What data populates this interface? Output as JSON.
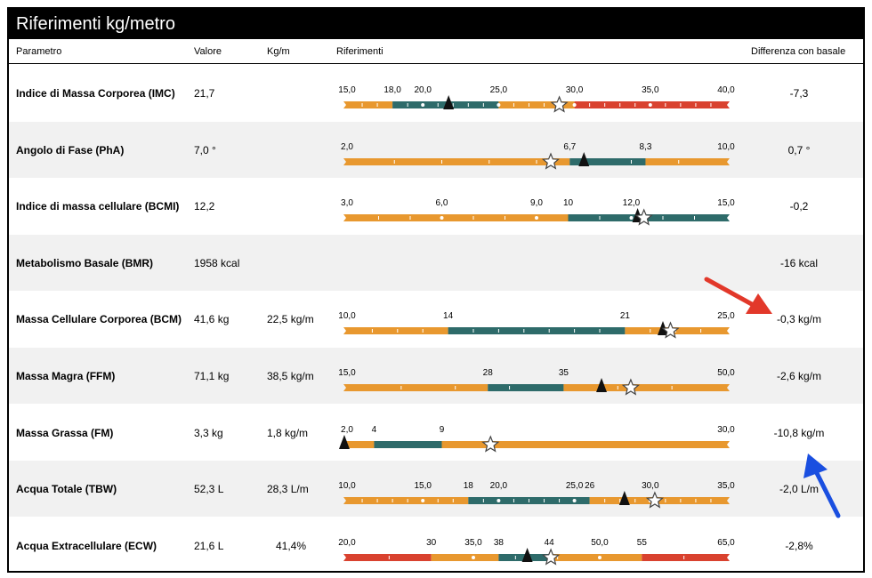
{
  "title": "Riferimenti kg/metro",
  "columns": {
    "param": "Parametro",
    "value": "Valore",
    "kgm": "Kg/m",
    "ref": "Riferimenti",
    "diff": "Differenza con basale"
  },
  "colors": {
    "orange": "#e8982f",
    "teal": "#2e6b6a",
    "red": "#d9422f",
    "arrow_red": "#e2382a",
    "arrow_blue": "#1a4fe0"
  },
  "rows": [
    {
      "name": "Indice di Massa Corporea (IMC)",
      "value": "21,7",
      "kgm": "",
      "diff": "-7,3",
      "scale": {
        "min": 15,
        "max": 40,
        "segments": [
          {
            "from": 15,
            "to": 18,
            "color": "orange"
          },
          {
            "from": 18,
            "to": 25,
            "color": "teal"
          },
          {
            "from": 25,
            "to": 30,
            "color": "orange"
          },
          {
            "from": 30,
            "to": 40,
            "color": "red"
          }
        ],
        "labels": [
          {
            "v": 15,
            "t": "15,0"
          },
          {
            "v": 18,
            "t": "18,0"
          },
          {
            "v": 20,
            "t": "20,0"
          },
          {
            "v": 25,
            "t": "25,0"
          },
          {
            "v": 30,
            "t": "30,0"
          },
          {
            "v": 35,
            "t": "35,0"
          },
          {
            "v": 40,
            "t": "40,0"
          }
        ],
        "ticks": [
          16,
          17,
          19,
          21,
          22,
          23,
          24,
          26,
          27,
          28,
          29,
          31,
          32,
          33,
          34,
          36,
          37,
          38,
          39
        ],
        "dots": [
          20,
          25,
          30,
          35
        ],
        "triangle": 21.7,
        "star": 29
      }
    },
    {
      "name": "Angolo di Fase (PhA)",
      "value": "7,0 °",
      "kgm": "",
      "diff": "0,7 °",
      "scale": {
        "min": 2,
        "max": 10,
        "segments": [
          {
            "from": 2,
            "to": 6.7,
            "color": "orange"
          },
          {
            "from": 6.7,
            "to": 8.3,
            "color": "teal"
          },
          {
            "from": 8.3,
            "to": 10,
            "color": "orange"
          }
        ],
        "labels": [
          {
            "v": 2,
            "t": "2,0"
          },
          {
            "v": 6.7,
            "t": "6,7"
          },
          {
            "v": 8.3,
            "t": "8,3"
          },
          {
            "v": 10,
            "t": "10,0"
          }
        ],
        "ticks": [
          3,
          4,
          5,
          6,
          7,
          8,
          9
        ],
        "dots": [],
        "triangle": 7.0,
        "star": 6.3
      }
    },
    {
      "name": "Indice di massa cellulare (BCMI)",
      "value": "12,2",
      "kgm": "",
      "diff": "-0,2",
      "scale": {
        "min": 3,
        "max": 15,
        "segments": [
          {
            "from": 3,
            "to": 10,
            "color": "orange"
          },
          {
            "from": 10,
            "to": 15,
            "color": "teal"
          }
        ],
        "labels": [
          {
            "v": 3,
            "t": "3,0"
          },
          {
            "v": 6,
            "t": "6,0"
          },
          {
            "v": 9,
            "t": "9,0"
          },
          {
            "v": 10,
            "t": "10"
          },
          {
            "v": 12,
            "t": "12,0"
          },
          {
            "v": 15,
            "t": "15,0"
          }
        ],
        "ticks": [
          4,
          5,
          7,
          8,
          11,
          13,
          14
        ],
        "dots": [
          6,
          9,
          12
        ],
        "triangle": 12.2,
        "star": 12.4
      }
    },
    {
      "name": "Metabolismo Basale (BMR)",
      "value": "1958 kcal",
      "kgm": "",
      "diff": "-16 kcal",
      "scale": null
    },
    {
      "name": "Massa Cellulare Corporea (BCM)",
      "value": "41,6 kg",
      "kgm": "22,5 kg/m",
      "diff": "-0,3 kg/m",
      "scale": {
        "min": 10,
        "max": 25,
        "segments": [
          {
            "from": 10,
            "to": 14,
            "color": "orange"
          },
          {
            "from": 14,
            "to": 21,
            "color": "teal"
          },
          {
            "from": 21,
            "to": 25,
            "color": "orange"
          }
        ],
        "labels": [
          {
            "v": 10,
            "t": "10,0"
          },
          {
            "v": 14,
            "t": "14"
          },
          {
            "v": 21,
            "t": "21"
          },
          {
            "v": 25,
            "t": "25,0"
          }
        ],
        "ticks": [
          11,
          12,
          13,
          15,
          16,
          17,
          18,
          19,
          20,
          22,
          23,
          24
        ],
        "dots": [],
        "triangle": 22.5,
        "star": 22.8
      }
    },
    {
      "name": "Massa Magra (FFM)",
      "value": "71,1 kg",
      "kgm": "38,5 kg/m",
      "diff": "-2,6 kg/m",
      "scale": {
        "min": 15,
        "max": 50,
        "segments": [
          {
            "from": 15,
            "to": 28,
            "color": "orange"
          },
          {
            "from": 28,
            "to": 35,
            "color": "teal"
          },
          {
            "from": 35,
            "to": 50,
            "color": "orange"
          }
        ],
        "labels": [
          {
            "v": 15,
            "t": "15,0"
          },
          {
            "v": 28,
            "t": "28"
          },
          {
            "v": 35,
            "t": "35"
          },
          {
            "v": 50,
            "t": "50,0"
          }
        ],
        "ticks": [
          20,
          25,
          30,
          40,
          45
        ],
        "dots": [],
        "triangle": 38.5,
        "star": 41.2
      }
    },
    {
      "name": "Massa Grassa (FM)",
      "value": "3,3 kg",
      "kgm": "1,8 kg/m",
      "diff": "-10,8 kg/m",
      "scale": {
        "min": 2,
        "max": 30,
        "segments": [
          {
            "from": 2,
            "to": 4,
            "color": "orange"
          },
          {
            "from": 4,
            "to": 9,
            "color": "teal"
          },
          {
            "from": 9,
            "to": 30,
            "color": "orange"
          }
        ],
        "labels": [
          {
            "v": 2,
            "t": "2,0"
          },
          {
            "v": 4,
            "t": "4"
          },
          {
            "v": 9,
            "t": "9"
          },
          {
            "v": 30,
            "t": "30,0"
          }
        ],
        "ticks": [],
        "dots": [],
        "triangle": 1.8,
        "star": 12.6
      }
    },
    {
      "name": "Acqua Totale (TBW)",
      "value": "52,3 L",
      "kgm": "28,3 L/m",
      "diff": "-2,0 L/m",
      "scale": {
        "min": 10,
        "max": 35,
        "segments": [
          {
            "from": 10,
            "to": 18,
            "color": "orange"
          },
          {
            "from": 18,
            "to": 26,
            "color": "teal"
          },
          {
            "from": 26,
            "to": 35,
            "color": "orange"
          }
        ],
        "labels": [
          {
            "v": 10,
            "t": "10,0"
          },
          {
            "v": 15,
            "t": "15,0"
          },
          {
            "v": 18,
            "t": "18"
          },
          {
            "v": 20,
            "t": "20,0"
          },
          {
            "v": 25,
            "t": "25,0"
          },
          {
            "v": 26,
            "t": "26"
          },
          {
            "v": 30,
            "t": "30,0"
          },
          {
            "v": 35,
            "t": "35,0"
          }
        ],
        "ticks": [
          11,
          12,
          13,
          14,
          16,
          17,
          19,
          21,
          22,
          23,
          24,
          27,
          28,
          29,
          31,
          32,
          33,
          34
        ],
        "dots": [
          15,
          20,
          25,
          30
        ],
        "triangle": 28.3,
        "star": 30.3
      }
    },
    {
      "name": "Acqua Extracellulare (ECW)",
      "value": "21,6 L",
      "kgm": "41,4%",
      "diff": "-2,8%",
      "scale": {
        "min": 20,
        "max": 65,
        "segments": [
          {
            "from": 20,
            "to": 30,
            "color": "red"
          },
          {
            "from": 30,
            "to": 38,
            "color": "orange"
          },
          {
            "from": 38,
            "to": 44,
            "color": "teal"
          },
          {
            "from": 44,
            "to": 55,
            "color": "orange"
          },
          {
            "from": 55,
            "to": 65,
            "color": "red"
          }
        ],
        "labels": [
          {
            "v": 20,
            "t": "20,0"
          },
          {
            "v": 30,
            "t": "30"
          },
          {
            "v": 35,
            "t": "35,0"
          },
          {
            "v": 38,
            "t": "38"
          },
          {
            "v": 44,
            "t": "44"
          },
          {
            "v": 50,
            "t": "50,0"
          },
          {
            "v": 55,
            "t": "55"
          },
          {
            "v": 65,
            "t": "65,0"
          }
        ],
        "ticks": [
          25,
          40,
          45,
          60
        ],
        "dots": [
          35,
          50
        ],
        "triangle": 41.4,
        "star": 44.2
      }
    }
  ]
}
